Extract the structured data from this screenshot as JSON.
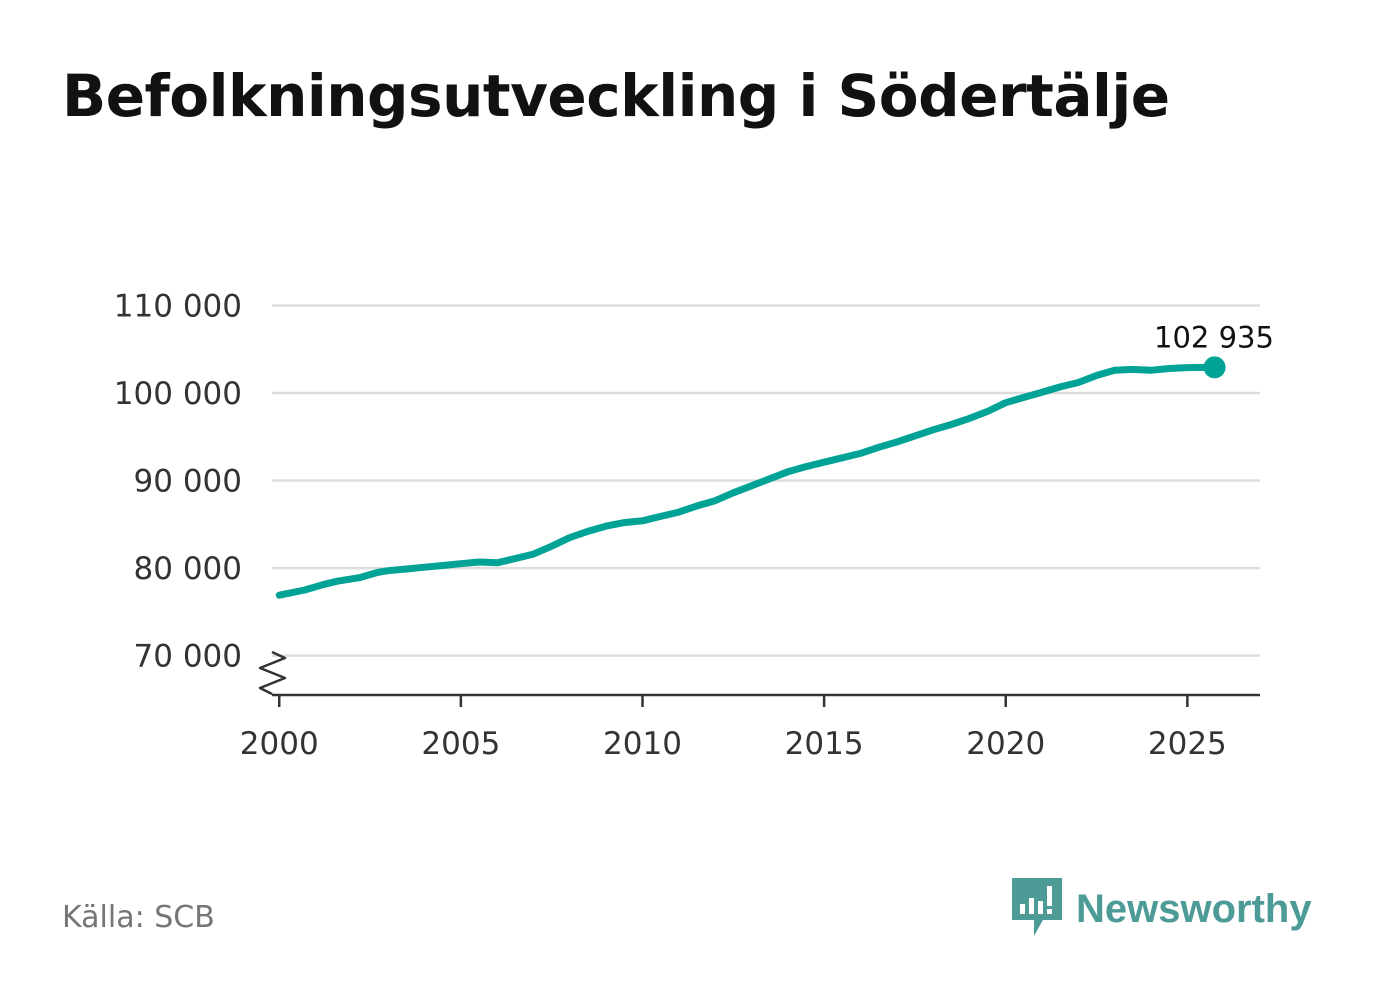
{
  "title": "Befolkningsutveckling i Södertälje",
  "source": "Källa: SCB",
  "brand": "Newsworthy",
  "colors": {
    "line": "#00a395",
    "grid": "#dddddd",
    "axis": "#333333",
    "brand": "#4c9b97"
  },
  "chart_data": {
    "type": "line",
    "title": "Befolkningsutveckling i Södertälje",
    "xlabel": "",
    "ylabel": "",
    "xlim": [
      1999.8,
      2027
    ],
    "ylim": [
      65500,
      112000
    ],
    "y_ticks": [
      70000,
      80000,
      90000,
      100000,
      110000
    ],
    "y_tick_labels": [
      "70 000",
      "80 000",
      "90 000",
      "100 000",
      "110 000"
    ],
    "x_ticks": [
      2000,
      2005,
      2010,
      2015,
      2020,
      2025
    ],
    "x_tick_labels": [
      "2000",
      "2005",
      "2010",
      "2015",
      "2020",
      "2025"
    ],
    "axis_break": true,
    "end_label": "102 935",
    "series": [
      {
        "name": "Befolkning",
        "x": [
          2000.0,
          2000.7,
          2001.2,
          2001.6,
          2002.2,
          2002.7,
          2003.0,
          2003.5,
          2004.0,
          2004.5,
          2005.0,
          2005.5,
          2006.0,
          2006.5,
          2007.0,
          2007.5,
          2008.0,
          2008.5,
          2009.0,
          2009.5,
          2010.0,
          2010.5,
          2011.0,
          2011.5,
          2012.0,
          2012.5,
          2013.0,
          2013.5,
          2014.0,
          2014.5,
          2015.0,
          2015.5,
          2016.0,
          2016.5,
          2017.0,
          2017.5,
          2018.0,
          2018.5,
          2019.0,
          2019.5,
          2020.0,
          2020.5,
          2021.0,
          2021.5,
          2022.0,
          2022.5,
          2023.0,
          2023.5,
          2024.0,
          2024.5,
          2025.0,
          2025.75
        ],
        "values": [
          76900,
          77500,
          78100,
          78500,
          78900,
          79500,
          79700,
          79900,
          80100,
          80300,
          80500,
          80700,
          80600,
          81100,
          81600,
          82500,
          83500,
          84200,
          84800,
          85200,
          85400,
          85900,
          86400,
          87100,
          87700,
          88600,
          89400,
          90200,
          91000,
          91600,
          92100,
          92600,
          93100,
          93800,
          94400,
          95100,
          95800,
          96400,
          97100,
          97900,
          98900,
          99500,
          100100,
          100700,
          101200,
          102000,
          102600,
          102700,
          102600,
          102800,
          102900,
          102935
        ]
      }
    ]
  }
}
